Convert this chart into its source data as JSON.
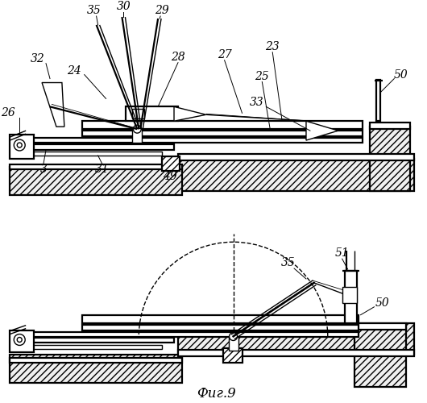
{
  "title": "Фиг.9",
  "bg_color": "#ffffff",
  "figsize": [
    5.3,
    5.0
  ],
  "dpi": 100
}
